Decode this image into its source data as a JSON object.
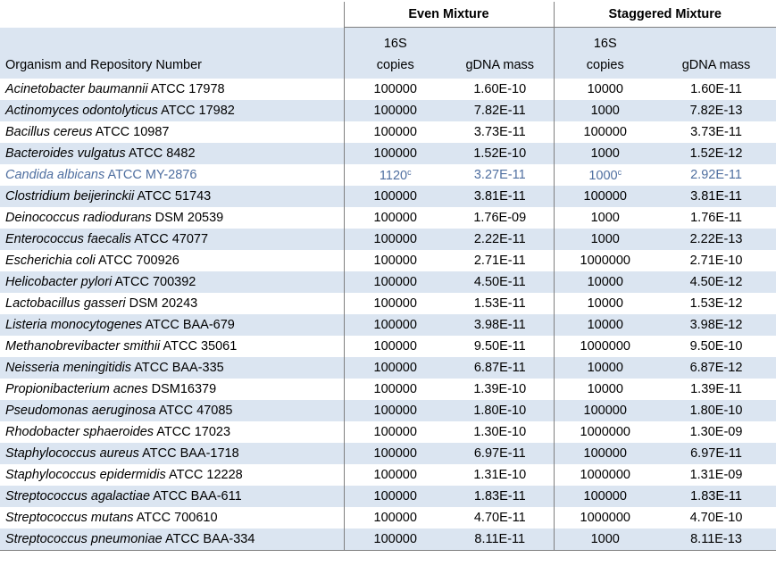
{
  "table": {
    "groups": [
      "Even Mixture",
      "Staggered Mixture"
    ],
    "headers": [
      "Organism and Repository Number",
      "16S\ncopies",
      "gDNA mass",
      "16S\ncopies",
      "gDNA mass"
    ],
    "rows": [
      {
        "species": "Acinetobacter baumannii",
        "repository": "ATCC 17978",
        "cells": [
          "100000",
          "1.60E-10",
          "10000",
          "1.60E-11"
        ]
      },
      {
        "species": "Actinomyces odontolyticus",
        "repository": "ATCC 17982",
        "cells": [
          "100000",
          "7.82E-11",
          "1000",
          "7.82E-13"
        ]
      },
      {
        "species": "Bacillus cereus",
        "repository": "ATCC 10987",
        "cells": [
          "100000",
          "3.73E-11",
          "100000",
          "3.73E-11"
        ]
      },
      {
        "species": "Bacteroides vulgatus",
        "repository": "ATCC 8482",
        "cells": [
          "100000",
          "1.52E-10",
          "1000",
          "1.52E-12"
        ]
      },
      {
        "species": "Candida albicans",
        "repository": "ATCC MY-2876",
        "highlight": true,
        "cells": [
          {
            "text": "1120",
            "note": "c"
          },
          "3.27E-11",
          {
            "text": "1000",
            "note": "c"
          },
          "2.92E-11"
        ]
      },
      {
        "species": "Clostridium beijerinckii",
        "repository": "ATCC 51743",
        "cells": [
          "100000",
          "3.81E-11",
          "100000",
          "3.81E-11"
        ]
      },
      {
        "species": "Deinococcus radiodurans",
        "repository": "DSM 20539",
        "cells": [
          "100000",
          "1.76E-09",
          "1000",
          "1.76E-11"
        ]
      },
      {
        "species": "Enterococcus faecalis",
        "repository": "ATCC 47077",
        "cells": [
          "100000",
          "2.22E-11",
          "1000",
          "2.22E-13"
        ]
      },
      {
        "species": "Escherichia coli",
        "repository": "ATCC 700926",
        "cells": [
          "100000",
          "2.71E-11",
          "1000000",
          "2.71E-10"
        ]
      },
      {
        "species": "Helicobacter pylori",
        "repository": "ATCC 700392",
        "cells": [
          "100000",
          "4.50E-11",
          "10000",
          "4.50E-12"
        ]
      },
      {
        "species": "Lactobacillus gasseri",
        "repository": "DSM 20243",
        "cells": [
          "100000",
          "1.53E-11",
          "10000",
          "1.53E-12"
        ]
      },
      {
        "species": "Listeria monocytogenes",
        "repository": "ATCC BAA-679",
        "cells": [
          "100000",
          "3.98E-11",
          "10000",
          "3.98E-12"
        ]
      },
      {
        "species": "Methanobrevibacter smithii",
        "repository": "ATCC 35061",
        "cells": [
          "100000",
          "9.50E-11",
          "1000000",
          "9.50E-10"
        ]
      },
      {
        "species": "Neisseria meningitidis",
        "repository": "ATCC BAA-335",
        "cells": [
          "100000",
          "6.87E-11",
          "10000",
          "6.87E-12"
        ]
      },
      {
        "species": "Propionibacterium acnes",
        "repository": "DSM16379",
        "cells": [
          "100000",
          "1.39E-10",
          "10000",
          "1.39E-11"
        ]
      },
      {
        "species": "Pseudomonas aeruginosa",
        "repository": "ATCC 47085",
        "cells": [
          "100000",
          "1.80E-10",
          "100000",
          "1.80E-10"
        ]
      },
      {
        "species": "Rhodobacter sphaeroides",
        "repository": "ATCC 17023",
        "cells": [
          "100000",
          "1.30E-10",
          "1000000",
          "1.30E-09"
        ]
      },
      {
        "species": "Staphylococcus aureus",
        "repository": "ATCC BAA-1718",
        "cells": [
          "100000",
          "6.97E-11",
          "100000",
          "6.97E-11"
        ]
      },
      {
        "species": "Staphylococcus epidermidis",
        "repository": "ATCC 12228",
        "cells": [
          "100000",
          "1.31E-10",
          "1000000",
          "1.31E-09"
        ]
      },
      {
        "species": "Streptococcus agalactiae",
        "repository": "ATCC BAA-611",
        "cells": [
          "100000",
          "1.83E-11",
          "100000",
          "1.83E-11"
        ]
      },
      {
        "species": "Streptococcus mutans",
        "repository": "ATCC 700610",
        "cells": [
          "100000",
          "4.70E-11",
          "1000000",
          "4.70E-10"
        ]
      },
      {
        "species": "Streptococcus pneumoniae",
        "repository": "ATCC BAA-334",
        "cells": [
          "100000",
          "8.11E-11",
          "1000",
          "8.11E-13"
        ]
      }
    ]
  }
}
